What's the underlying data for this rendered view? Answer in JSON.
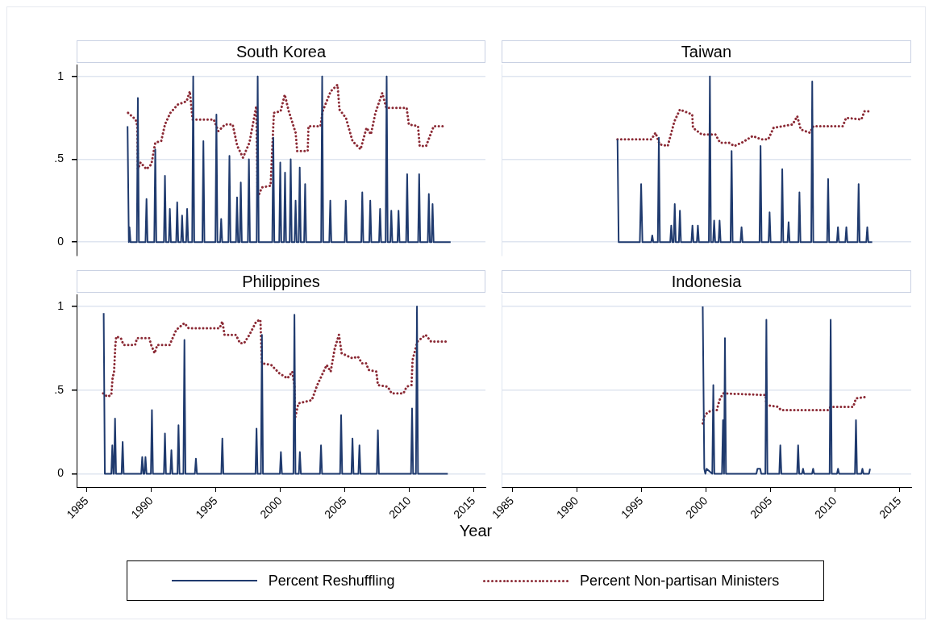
{
  "chart_data": [
    {
      "type": "line",
      "title": "South Korea",
      "xlim": [
        1984.2,
        2015.9
      ],
      "xticks": [
        1985,
        1990,
        1995,
        2000,
        2005,
        2010,
        2015
      ],
      "ylim": [
        -0.08,
        1.07
      ],
      "yticks": [
        {
          "value": 0,
          "label": "0"
        },
        {
          "value": 0.5,
          "label": ".5"
        },
        {
          "value": 1,
          "label": "1"
        }
      ],
      "grid": "y",
      "tick_labels": "y",
      "legend": "bottom",
      "marker": "none",
      "series": [
        {
          "name": "Percent Reshuffling",
          "color": "#1f3a6e",
          "line_style": "solid",
          "x": [
            1988.15,
            1988.25,
            1988.3,
            1988.38,
            1988.87,
            1988.95,
            1989.03,
            1989.54,
            1989.62,
            1989.7,
            1990.22,
            1990.3,
            1990.38,
            1990.97,
            1991.05,
            1991.13,
            1991.35,
            1991.43,
            1991.51,
            1991.92,
            1992.0,
            1992.08,
            1992.3,
            1992.38,
            1992.46,
            1992.69,
            1992.77,
            1992.85,
            1993.16,
            1993.24,
            1993.32,
            1993.95,
            1994.03,
            1994.11,
            1994.96,
            1995.04,
            1995.12,
            1995.33,
            1995.41,
            1995.49,
            1995.97,
            1996.05,
            1996.13,
            1996.56,
            1996.64,
            1996.72,
            1996.85,
            1996.93,
            1997.01,
            1997.48,
            1997.56,
            1997.64,
            1998.16,
            1998.24,
            1998.32,
            1999.37,
            1999.45,
            1999.53,
            1999.91,
            1999.99,
            2000.07,
            2000.28,
            2000.36,
            2000.44,
            2000.72,
            2000.8,
            2000.88,
            2001.1,
            2001.18,
            2001.26,
            2001.42,
            2001.5,
            2001.58,
            2001.84,
            2001.92,
            2002.0,
            2003.16,
            2003.24,
            2003.32,
            2003.79,
            2003.87,
            2003.95,
            2004.99,
            2005.07,
            2005.15,
            2006.27,
            2006.35,
            2006.43,
            2006.89,
            2006.97,
            2007.05,
            2007.65,
            2007.73,
            2007.81,
            2008.16,
            2008.24,
            2008.32,
            2008.52,
            2008.6,
            2008.68,
            2009.08,
            2009.16,
            2009.24,
            2009.75,
            2009.83,
            2009.91,
            2010.68,
            2010.76,
            2010.84,
            2011.43,
            2011.51,
            2011.59,
            2011.72,
            2011.8,
            2011.88,
            2013.2
          ],
          "values": [
            0.7,
            0,
            0.09,
            0,
            0,
            0.87,
            0,
            0,
            0.26,
            0,
            0,
            0.56,
            0,
            0,
            0.4,
            0,
            0,
            0.2,
            0,
            0,
            0.24,
            0,
            0,
            0.16,
            0,
            0,
            0.2,
            0,
            0,
            1,
            0,
            0,
            0.61,
            0,
            0,
            0.77,
            0,
            0,
            0.14,
            0,
            0,
            0.52,
            0,
            0,
            0.27,
            0,
            0,
            0.36,
            0,
            0,
            0.5,
            0,
            0,
            1,
            0,
            0,
            0.63,
            0,
            0,
            0.48,
            0,
            0,
            0.42,
            0,
            0,
            0.5,
            0,
            0,
            0.25,
            0,
            0,
            0.45,
            0,
            0,
            0.35,
            0,
            0,
            1,
            0,
            0,
            0.25,
            0,
            0,
            0.25,
            0,
            0,
            0.3,
            0,
            0,
            0.25,
            0,
            0,
            0.2,
            0,
            0,
            1,
            0,
            0,
            0.19,
            0,
            0,
            0.19,
            0,
            0,
            0.41,
            0,
            0,
            0.41,
            0,
            0,
            0.29,
            0,
            0,
            0.23,
            0,
            0
          ]
        },
        {
          "name": "Percent Non-partisan Ministers",
          "color": "#8b2a35",
          "line_style": "dotted",
          "x": [
            1988.19,
            1988.78,
            1988.91,
            1988.95,
            1989.16,
            1989.62,
            1990.0,
            1990.3,
            1990.76,
            1991.05,
            1991.47,
            1992.04,
            1992.73,
            1992.98,
            1993.19,
            1994.83,
            1995.19,
            1995.71,
            1996.3,
            1996.66,
            1997.1,
            1997.6,
            1998.13,
            1998.24,
            1998.57,
            1999.24,
            1999.5,
            2000.02,
            2000.34,
            2000.65,
            2001.18,
            2001.3,
            2002.12,
            2002.18,
            2003.11,
            2003.28,
            2003.9,
            2004.43,
            2004.58,
            2005.08,
            2005.59,
            2006.22,
            2006.68,
            2007.02,
            2007.37,
            2007.9,
            2008.21,
            2009.79,
            2009.96,
            2010.67,
            2010.8,
            2011.3,
            2011.89,
            2012.84
          ],
          "values": [
            0.78,
            0.74,
            0.7,
            0.44,
            0.48,
            0.44,
            0.47,
            0.6,
            0.61,
            0.71,
            0.78,
            0.83,
            0.85,
            0.91,
            0.74,
            0.74,
            0.67,
            0.71,
            0.71,
            0.58,
            0.51,
            0.6,
            0.82,
            0.27,
            0.33,
            0.34,
            0.78,
            0.79,
            0.89,
            0.79,
            0.66,
            0.55,
            0.55,
            0.7,
            0.7,
            0.79,
            0.91,
            0.95,
            0.8,
            0.75,
            0.61,
            0.56,
            0.69,
            0.65,
            0.78,
            0.9,
            0.81,
            0.81,
            0.71,
            0.7,
            0.58,
            0.58,
            0.7,
            0.7
          ]
        }
      ]
    },
    {
      "type": "line",
      "title": "Taiwan",
      "xlim": [
        1984.2,
        2015.9
      ],
      "xticks": [
        1985,
        1990,
        1995,
        2000,
        2005,
        2010,
        2015
      ],
      "ylim": [
        -0.08,
        1.07
      ],
      "yticks": [
        0,
        0.5,
        1
      ],
      "grid": "y",
      "tick_labels": false,
      "marker": "none",
      "series": [
        {
          "color": "#1f3a6e",
          "line_style": "solid",
          "x": [
            1993.17,
            1993.26,
            1994.9,
            1995.0,
            1995.1,
            1995.78,
            1995.86,
            1995.94,
            1996.29,
            1996.37,
            1996.45,
            1997.25,
            1997.33,
            1997.41,
            1997.52,
            1997.6,
            1997.68,
            1997.92,
            1998.0,
            1998.08,
            1998.89,
            1998.97,
            1999.05,
            1999.31,
            1999.39,
            1999.47,
            2000.24,
            2000.32,
            2000.4,
            2000.57,
            2000.65,
            2000.73,
            2000.99,
            2001.07,
            2001.15,
            2001.92,
            2002.0,
            2002.08,
            2002.69,
            2002.77,
            2002.85,
            2004.16,
            2004.24,
            2004.32,
            2004.86,
            2004.94,
            2005.02,
            2005.84,
            2005.92,
            2006.0,
            2006.33,
            2006.41,
            2006.49,
            2007.17,
            2007.25,
            2007.33,
            2008.16,
            2008.24,
            2008.32,
            2009.39,
            2009.47,
            2009.55,
            2010.15,
            2010.23,
            2010.31,
            2010.8,
            2010.88,
            2010.96,
            2011.75,
            2011.83,
            2011.91,
            2012.42,
            2012.5,
            2012.58,
            2012.88
          ],
          "values": [
            0.62,
            0,
            0,
            0.35,
            0,
            0,
            0.04,
            0,
            0,
            0.63,
            0,
            0,
            0.1,
            0,
            0,
            0.23,
            0,
            0,
            0.19,
            0,
            0,
            0.1,
            0,
            0,
            0.1,
            0,
            0,
            1,
            0,
            0,
            0.13,
            0,
            0,
            0.13,
            0,
            0,
            0.55,
            0,
            0,
            0.09,
            0,
            0,
            0.58,
            0,
            0,
            0.18,
            0,
            0,
            0.44,
            0,
            0,
            0.12,
            0,
            0,
            0.3,
            0,
            0,
            0.97,
            0,
            0,
            0.38,
            0,
            0,
            0.09,
            0,
            0,
            0.09,
            0,
            0,
            0.35,
            0,
            0,
            0.09,
            0,
            0
          ]
        },
        {
          "color": "#8b2a35",
          "line_style": "dotted",
          "x": [
            1993.17,
            1995.8,
            1996.11,
            1996.43,
            1997.06,
            1997.58,
            1998.0,
            1998.95,
            1999.01,
            1999.68,
            2000.32,
            2000.74,
            2001.11,
            2001.79,
            2002.2,
            2002.79,
            2003.63,
            2004.31,
            2004.83,
            2005.25,
            2006.72,
            2007.08,
            2007.35,
            2008.05,
            2008.34,
            2010.61,
            2010.86,
            2012.04,
            2012.29,
            2012.67
          ],
          "values": [
            0.62,
            0.62,
            0.66,
            0.59,
            0.58,
            0.73,
            0.8,
            0.77,
            0.69,
            0.65,
            0.65,
            0.65,
            0.6,
            0.6,
            0.58,
            0.6,
            0.64,
            0.62,
            0.62,
            0.69,
            0.71,
            0.76,
            0.68,
            0.66,
            0.7,
            0.7,
            0.75,
            0.74,
            0.79,
            0.79
          ]
        }
      ]
    },
    {
      "type": "line",
      "title": "Philippines",
      "xlabel": "Year",
      "xlim": [
        1984.2,
        2015.9
      ],
      "xticks": [
        1985,
        1990,
        1995,
        2000,
        2005,
        2010,
        2015
      ],
      "ylim": [
        -0.08,
        1.07
      ],
      "yticks": [
        {
          "value": 0,
          "label": "0"
        },
        {
          "value": 0.5,
          "label": ".5"
        },
        {
          "value": 1,
          "label": "1"
        }
      ],
      "grid": "y",
      "marker": "none",
      "series": [
        {
          "color": "#1f3a6e",
          "line_style": "solid",
          "x": [
            1986.3,
            1986.39,
            1986.89,
            1986.97,
            1987.05,
            1987.1,
            1987.18,
            1987.26,
            1987.69,
            1987.77,
            1987.85,
            1989.21,
            1989.29,
            1989.37,
            1989.46,
            1989.54,
            1989.62,
            1989.96,
            1990.04,
            1990.12,
            1990.97,
            1991.05,
            1991.13,
            1991.47,
            1991.55,
            1991.63,
            1992.02,
            1992.1,
            1992.18,
            1992.48,
            1992.56,
            1992.64,
            1993.37,
            1993.45,
            1993.53,
            1995.42,
            1995.5,
            1995.58,
            1998.07,
            1998.15,
            1998.23,
            1998.49,
            1998.57,
            1998.65,
            1999.96,
            2000.04,
            2000.12,
            2001.01,
            2001.09,
            2001.17,
            2001.43,
            2001.51,
            2001.59,
            2003.07,
            2003.15,
            2003.23,
            2004.63,
            2004.71,
            2004.79,
            2005.51,
            2005.59,
            2005.67,
            2006.05,
            2006.13,
            2006.21,
            2007.48,
            2007.56,
            2007.64,
            2010.13,
            2010.21,
            2010.29,
            2010.51,
            2010.59,
            2010.67,
            2012.98
          ],
          "values": [
            0.96,
            0,
            0,
            0.17,
            0,
            0,
            0.33,
            0,
            0,
            0.19,
            0,
            0,
            0.1,
            0,
            0,
            0.1,
            0,
            0,
            0.38,
            0,
            0,
            0.24,
            0,
            0,
            0.14,
            0,
            0,
            0.29,
            0,
            0,
            0.8,
            0,
            0,
            0.09,
            0,
            0,
            0.21,
            0,
            0,
            0.27,
            0,
            0,
            0.83,
            0,
            0,
            0.13,
            0,
            0,
            0.95,
            0,
            0,
            0.13,
            0,
            0,
            0.17,
            0,
            0,
            0.35,
            0,
            0,
            0.21,
            0,
            0,
            0.17,
            0,
            0,
            0.26,
            0,
            0,
            0.39,
            0,
            0,
            1,
            0,
            0
          ]
        },
        {
          "color": "#8b2a35",
          "line_style": "dotted",
          "x": [
            1986.26,
            1986.58,
            1986.89,
            1987.0,
            1987.1,
            1987.2,
            1987.27,
            1987.63,
            1987.84,
            1988.74,
            1988.89,
            1989.83,
            1989.98,
            1990.25,
            1990.46,
            1991.41,
            1991.93,
            1992.56,
            1992.88,
            1995.29,
            1995.5,
            1995.67,
            1996.55,
            1996.87,
            1997.18,
            1997.6,
            1998.13,
            1998.45,
            1998.57,
            1999.29,
            1999.92,
            2000.55,
            2000.92,
            2001.09,
            2001.13,
            2001.39,
            2002.44,
            2002.86,
            2003.59,
            2003.9,
            2004.22,
            2004.54,
            2004.75,
            2005.59,
            2006.01,
            2006.32,
            2006.64,
            2006.85,
            2007.44,
            2007.56,
            2008.32,
            2008.63,
            2009.54,
            2009.79,
            2010.17,
            2010.25,
            2010.63,
            2011.26,
            2011.68,
            2012.94
          ],
          "values": [
            0.48,
            0.46,
            0.47,
            0.58,
            0.6,
            0.76,
            0.82,
            0.81,
            0.77,
            0.77,
            0.81,
            0.81,
            0.77,
            0.72,
            0.77,
            0.77,
            0.86,
            0.9,
            0.87,
            0.87,
            0.91,
            0.83,
            0.83,
            0.78,
            0.78,
            0.83,
            0.91,
            0.92,
            0.66,
            0.65,
            0.6,
            0.57,
            0.61,
            0.53,
            0.33,
            0.42,
            0.44,
            0.53,
            0.65,
            0.61,
            0.75,
            0.83,
            0.72,
            0.69,
            0.7,
            0.66,
            0.66,
            0.62,
            0.61,
            0.53,
            0.52,
            0.48,
            0.48,
            0.52,
            0.53,
            0.68,
            0.79,
            0.83,
            0.79,
            0.79
          ]
        }
      ]
    },
    {
      "type": "line",
      "title": "Indonesia",
      "xlim": [
        1984.2,
        2015.9
      ],
      "xticks": [
        1985,
        1990,
        1995,
        2000,
        2005,
        2010,
        2015
      ],
      "ylim": [
        -0.08,
        1.07
      ],
      "yticks": [
        0,
        0.5,
        1
      ],
      "grid": "y",
      "tick_labels": "x",
      "marker": "none",
      "series": [
        {
          "color": "#1f3a6e",
          "line_style": "solid",
          "x": [
            1999.75,
            1999.87,
            1999.95,
            2000.05,
            2000.49,
            2000.57,
            2000.65,
            2001.24,
            2001.32,
            2001.4,
            2001.47,
            2001.55,
            2003.91,
            2003.99,
            2004.2,
            2004.28,
            2004.6,
            2004.68,
            2004.76,
            2005.68,
            2005.76,
            2005.84,
            2007.06,
            2007.14,
            2007.22,
            2007.44,
            2007.52,
            2007.6,
            2008.22,
            2008.3,
            2008.38,
            2009.58,
            2009.66,
            2009.74,
            2010.15,
            2010.23,
            2010.31,
            2011.54,
            2011.62,
            2011.7,
            2012.04,
            2012.12,
            2012.2,
            2012.63,
            2012.71
          ],
          "values": [
            1,
            0.03,
            0,
            0.03,
            0,
            0.53,
            0,
            0,
            0.32,
            0,
            0.81,
            0,
            0,
            0.03,
            0.03,
            0,
            0,
            0.92,
            0,
            0,
            0.17,
            0,
            0,
            0.17,
            0,
            0,
            0.03,
            0,
            0,
            0.03,
            0,
            0,
            0.92,
            0,
            0,
            0.03,
            0,
            0,
            0.32,
            0,
            0,
            0.03,
            0,
            0,
            0.03
          ]
        },
        {
          "color": "#8b2a35",
          "line_style": "dotted",
          "x": [
            1999.75,
            1999.9,
            2000.21,
            2000.48,
            2000.84,
            2001.05,
            2001.32,
            2004.62,
            2004.68,
            2005.57,
            2005.82,
            2009.45,
            2009.66,
            2011.41,
            2011.62,
            2012.46
          ],
          "values": [
            0.3,
            0.35,
            0.37,
            0.38,
            0.38,
            0.44,
            0.48,
            0.47,
            0.41,
            0.4,
            0.38,
            0.38,
            0.4,
            0.4,
            0.45,
            0.46
          ]
        }
      ]
    }
  ]
}
